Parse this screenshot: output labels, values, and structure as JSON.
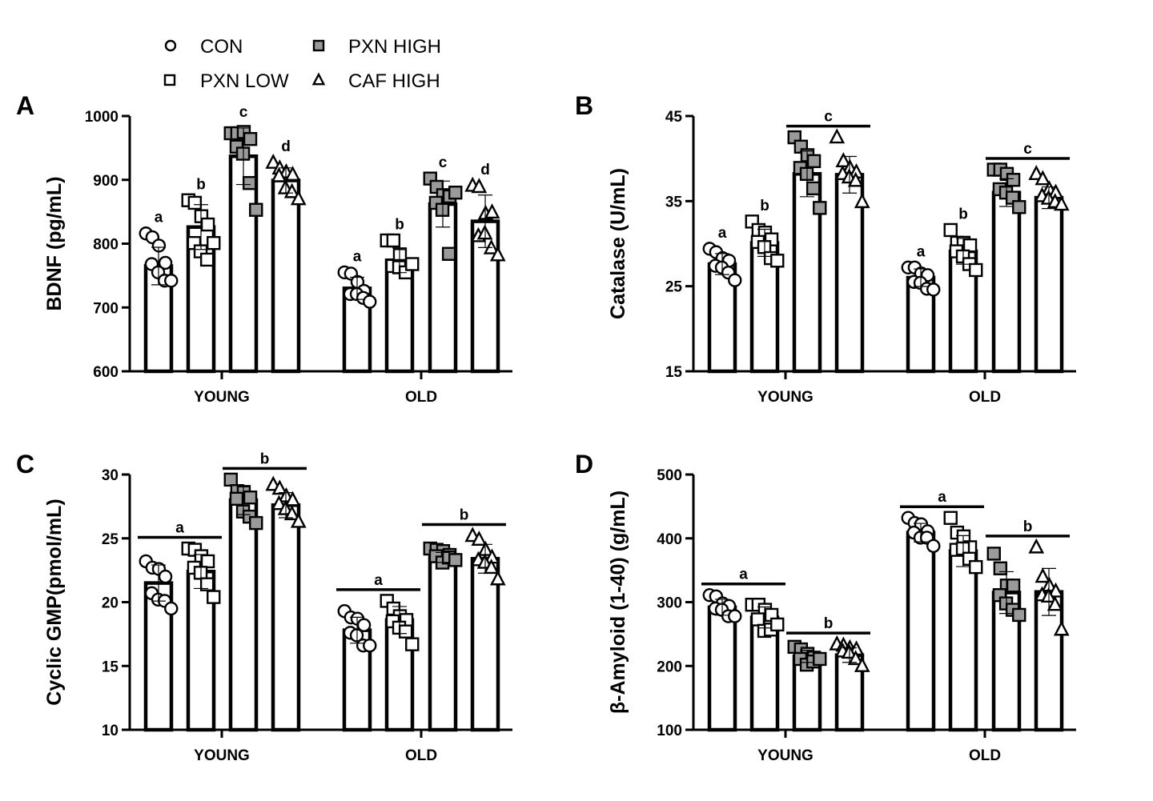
{
  "legend": [
    {
      "label": "CON",
      "marker": "circle",
      "fill": "#ffffff"
    },
    {
      "label": "PXN LOW",
      "marker": "square",
      "fill": "#ffffff"
    },
    {
      "label": "PXN HIGH",
      "marker": "square",
      "fill": "#9a9a9a"
    },
    {
      "label": "CAF HIGH",
      "marker": "triangle",
      "fill": "#ffffff"
    }
  ],
  "chart_data": [
    {
      "panel": "A",
      "type": "bar",
      "ylabel": "BDNF (pg/mL)",
      "ylim": [
        600,
        1000
      ],
      "yticks": [
        600,
        700,
        800,
        900,
        1000
      ],
      "categories": [
        "YOUNG",
        "OLD"
      ],
      "series": [
        {
          "name": "CON",
          "values": [
            765,
            730
          ],
          "points": [
            [
              816,
              810,
              797,
              770,
              768,
              755,
              742,
              742
            ],
            [
              755,
              753,
              740,
              726,
              721,
              721,
              715,
              709
            ]
          ]
        },
        {
          "name": "PXN LOW",
          "values": [
            826,
            774
          ],
          "points": [
            [
              868,
              864,
              843,
              830,
              801,
              788,
              775,
              801
            ],
            [
              805,
              805,
              782,
              765,
              765,
              763,
              755,
              768
            ]
          ]
        },
        {
          "name": "PXN HIGH",
          "values": [
            937,
            862
          ],
          "points": [
            [
              973,
              973,
              975,
              964,
              952,
              941,
              895,
              853
            ],
            [
              902,
              889,
              876,
              874,
              864,
              853,
              784,
              880
            ]
          ]
        },
        {
          "name": "CAF HIGH",
          "values": [
            899,
            835
          ],
          "points": [
            [
              927,
              918,
              912,
              908,
              906,
              887,
              881,
              870
            ],
            [
              891,
              889,
              847,
              849,
              812,
              816,
              793,
              782
            ]
          ]
        }
      ],
      "significance": [
        {
          "bars": [
            0
          ],
          "label": "a"
        },
        {
          "bars": [
            1
          ],
          "label": "b"
        },
        {
          "bars": [
            2
          ],
          "label": "c"
        },
        {
          "bars": [
            3
          ],
          "label": "d"
        },
        {
          "bars": [
            4
          ],
          "label": "a"
        },
        {
          "bars": [
            5
          ],
          "label": "b"
        },
        {
          "bars": [
            6
          ],
          "label": "c"
        },
        {
          "bars": [
            7
          ],
          "label": "d"
        }
      ]
    },
    {
      "panel": "B",
      "type": "bar",
      "ylabel": "Catalase  (U/mL)",
      "ylim": [
        15,
        45
      ],
      "yticks": [
        15,
        25,
        35,
        45
      ],
      "categories": [
        "YOUNG",
        "OLD"
      ],
      "series": [
        {
          "name": "CON",
          "values": [
            27.6,
            26.0
          ],
          "points": [
            [
              29.4,
              29.0,
              28.3,
              28.0,
              27.4,
              27.2,
              26.6,
              25.7
            ],
            [
              27.2,
              27.2,
              26.5,
              26.3,
              25.5,
              25.4,
              24.7,
              24.6
            ]
          ]
        },
        {
          "name": "PXN LOW",
          "values": [
            30.1,
            29.1
          ],
          "points": [
            [
              32.6,
              31.6,
              31.3,
              30.5,
              30.2,
              29.6,
              28.3,
              28.0
            ],
            [
              31.6,
              30.1,
              30.1,
              29.8,
              29.1,
              28.5,
              27.6,
              26.9
            ]
          ]
        },
        {
          "name": "PXN HIGH",
          "values": [
            38.2,
            36.0
          ],
          "points": [
            [
              42.5,
              41.4,
              40.4,
              39.7,
              38.9,
              38.2,
              36.5,
              34.2
            ],
            [
              38.7,
              38.7,
              38.2,
              37.5,
              36.4,
              36.0,
              35.4,
              34.3
            ]
          ]
        },
        {
          "name": "CAF HIGH",
          "values": [
            38.1,
            35.4
          ],
          "points": [
            [
              42.5,
              39.7,
              38.9,
              38.4,
              38.2,
              37.8,
              37.4,
              34.9
            ],
            [
              38.2,
              37.6,
              36.4,
              36.0,
              35.6,
              35.3,
              34.9,
              34.6
            ]
          ]
        }
      ],
      "significance": [
        {
          "bars": [
            0
          ],
          "label": "a"
        },
        {
          "bars": [
            1
          ],
          "label": "b"
        },
        {
          "bars": [
            2,
            3
          ],
          "label": "c"
        },
        {
          "bars": [
            4
          ],
          "label": "a"
        },
        {
          "bars": [
            5
          ],
          "label": "b"
        },
        {
          "bars": [
            6,
            7
          ],
          "label": "c"
        }
      ]
    },
    {
      "panel": "C",
      "type": "bar",
      "ylabel": "Cyclic GMP(pmol/mL)",
      "ylim": [
        10,
        30
      ],
      "yticks": [
        10,
        15,
        20,
        25,
        30
      ],
      "categories": [
        "YOUNG",
        "OLD"
      ],
      "series": [
        {
          "name": "CON",
          "values": [
            21.5,
            17.8
          ],
          "points": [
            [
              23.2,
              22.7,
              22.6,
              22.0,
              20.7,
              20.2,
              20.1,
              19.5
            ],
            [
              19.3,
              18.8,
              18.7,
              18.2,
              17.6,
              17.4,
              16.6,
              16.6
            ]
          ]
        },
        {
          "name": "PXN LOW",
          "values": [
            22.4,
            18.6
          ],
          "points": [
            [
              24.2,
              24.1,
              23.6,
              23.2,
              22.7,
              22.3,
              21.4,
              20.4
            ],
            [
              20.1,
              19.5,
              18.9,
              18.6,
              18.5,
              18.0,
              17.7,
              16.7
            ]
          ]
        },
        {
          "name": "PXN HIGH",
          "values": [
            28.0,
            23.5
          ],
          "points": [
            [
              29.6,
              28.7,
              28.6,
              28.2,
              28.1,
              27.1,
              26.7,
              26.2
            ],
            [
              24.2,
              24.1,
              24.0,
              23.7,
              23.6,
              23.1,
              23.5,
              23.3
            ]
          ]
        },
        {
          "name": "CAF HIGH",
          "values": [
            27.6,
            23.4
          ],
          "points": [
            [
              29.2,
              28.9,
              28.3,
              28.0,
              27.7,
              27.3,
              26.9,
              26.3
            ],
            [
              25.2,
              24.9,
              24.1,
              23.5,
              23.3,
              23.1,
              22.7,
              21.8
            ]
          ]
        }
      ],
      "significance": [
        {
          "bars": [
            0,
            1
          ],
          "label": "a"
        },
        {
          "bars": [
            2,
            3
          ],
          "label": "b"
        },
        {
          "bars": [
            4,
            5
          ],
          "label": "a"
        },
        {
          "bars": [
            6,
            7
          ],
          "label": "b"
        }
      ]
    },
    {
      "panel": "D",
      "type": "bar",
      "ylabel": "β-Amyloid (1-40) (g/mL)",
      "ylim": [
        100,
        500
      ],
      "yticks": [
        100,
        200,
        300,
        400,
        500
      ],
      "categories": [
        "YOUNG",
        "OLD"
      ],
      "series": [
        {
          "name": "CON",
          "values": [
            292,
            409
          ],
          "points": [
            [
              311,
              309,
              298,
              294,
              290,
              288,
              278,
              278
            ],
            [
              432,
              424,
              422,
              411,
              409,
              401,
              401,
              388
            ]
          ]
        },
        {
          "name": "PXN LOW",
          "values": [
            276,
            380
          ],
          "points": [
            [
              296,
              296,
              288,
              280,
              273,
              255,
              257,
              265
            ],
            [
              432,
              409,
              403,
              386,
              382,
              384,
              368,
              355
            ]
          ]
        },
        {
          "name": "PXN HIGH",
          "values": [
            215,
            315
          ],
          "points": [
            [
              230,
              226,
              219,
              213,
              211,
              202,
              207,
              211
            ],
            [
              376,
              353,
              326,
              326,
              311,
              298,
              288,
              280
            ]
          ]
        },
        {
          "name": "CAF HIGH",
          "values": [
            217,
            316
          ],
          "points": [
            [
              234,
              232,
              228,
              226,
              223,
              221,
              211,
              200
            ],
            [
              386,
              340,
              326,
              317,
              311,
              309,
              296,
              257
            ]
          ]
        }
      ],
      "significance": [
        {
          "bars": [
            0,
            1
          ],
          "label": "a"
        },
        {
          "bars": [
            2,
            3
          ],
          "label": "b"
        },
        {
          "bars": [
            4,
            5
          ],
          "label": "a"
        },
        {
          "bars": [
            6,
            7
          ],
          "label": "b"
        }
      ]
    }
  ]
}
